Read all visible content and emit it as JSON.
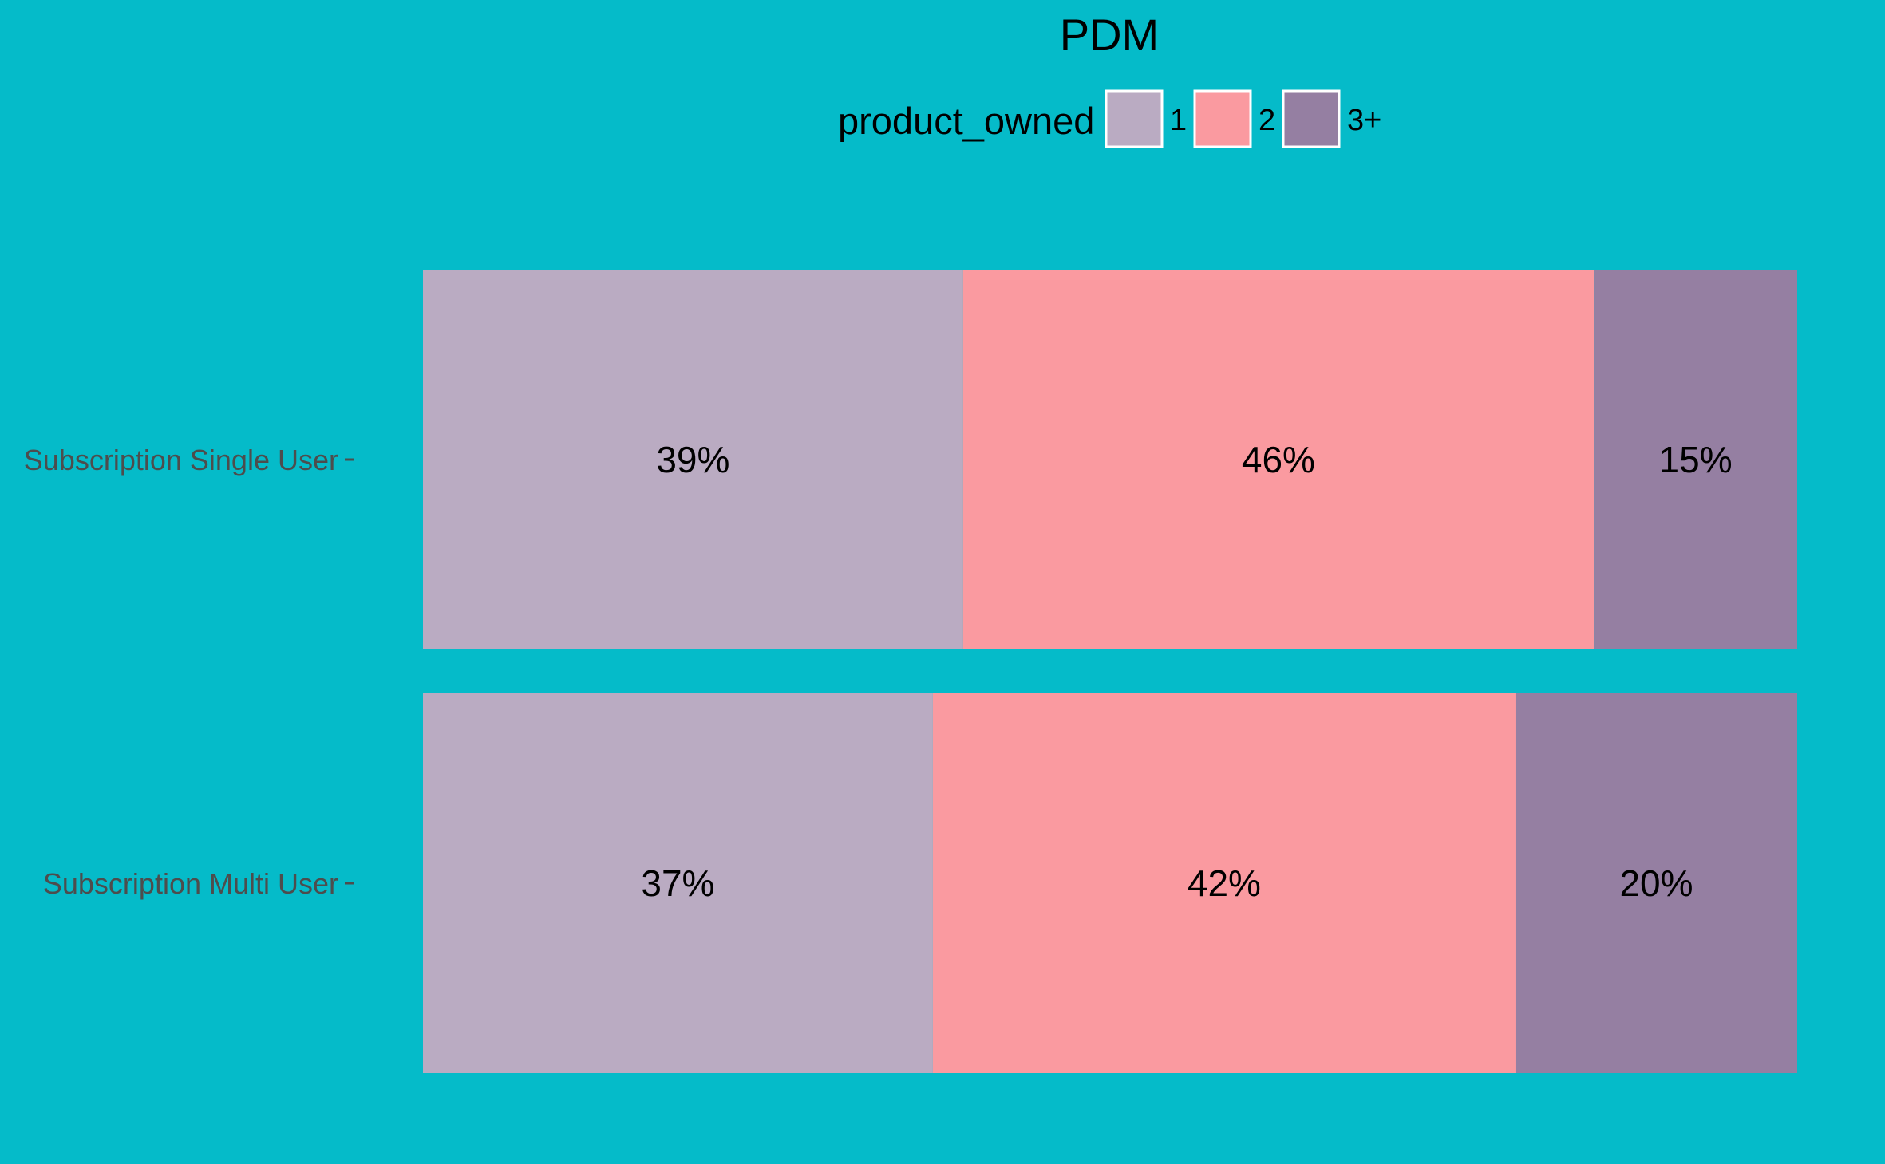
{
  "chart_data": {
    "type": "bar",
    "orientation": "horizontal",
    "stacked": "percent",
    "title": "PDM",
    "xlabel": "",
    "ylabel": "",
    "xlim": [
      0,
      100
    ],
    "grid": false,
    "legend": {
      "title": "product_owned",
      "position": "top",
      "entries": [
        "1",
        "2",
        "3+"
      ]
    },
    "categories": [
      "Subscription Single User",
      "Subscription Multi User"
    ],
    "series": [
      {
        "name": "1",
        "color": "#BAABC2",
        "values": [
          39.3,
          37.1
        ],
        "labels": [
          "39%",
          "37%"
        ]
      },
      {
        "name": "2",
        "color": "#FA9AA0",
        "values": [
          45.9,
          42.4
        ],
        "labels": [
          "46%",
          "42%"
        ]
      },
      {
        "name": "3+",
        "color": "#957FA2",
        "values": [
          14.8,
          20.5
        ],
        "labels": [
          "15%",
          "20%"
        ]
      }
    ],
    "colors": {
      "background": "#05BBC9",
      "axis_text": "#4D4D4D",
      "legend_key_border": "#FFFFFF"
    }
  }
}
